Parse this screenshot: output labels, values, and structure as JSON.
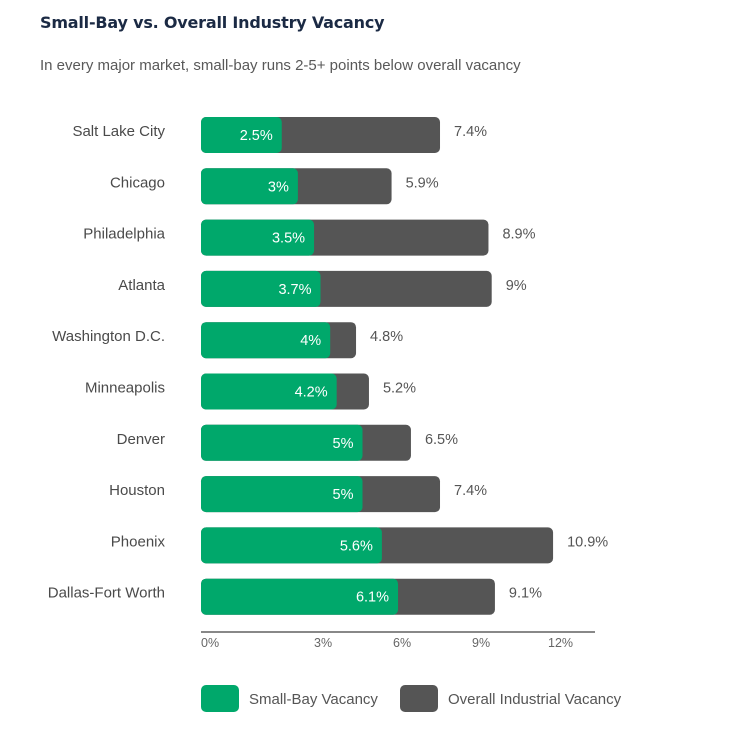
{
  "title": "Small-Bay vs. Overall Industry Vacancy",
  "subtitle": "In every major market, small-bay runs 2-5+ points below overall vacancy",
  "colors": {
    "small_bay": "#00a86b",
    "overall": "#555555",
    "axis": "#888888"
  },
  "chart_data": {
    "type": "bar",
    "orientation": "horizontal",
    "title": "Small-Bay vs. Overall Industry Vacancy",
    "subtitle": "In every major market, small-bay runs 2-5+ points below overall vacancy",
    "categories": [
      "Salt Lake City",
      "Chicago",
      "Philadelphia",
      "Atlanta",
      "Washington D.C.",
      "Minneapolis",
      "Denver",
      "Houston",
      "Phoenix",
      "Dallas-Fort Worth"
    ],
    "series": [
      {
        "name": "Small-Bay Vacancy",
        "values": [
          2.5,
          3,
          3.5,
          3.7,
          4,
          4.2,
          5,
          5,
          5.6,
          6.1
        ],
        "labels": [
          "2.5%",
          "3%",
          "3.5%",
          "3.7%",
          "4%",
          "4.2%",
          "5%",
          "5%",
          "5.6%",
          "6.1%"
        ]
      },
      {
        "name": "Overall Industrial Vacancy",
        "values": [
          7.4,
          5.9,
          8.9,
          9,
          4.8,
          5.2,
          6.5,
          7.4,
          10.9,
          9.1
        ],
        "labels": [
          "7.4%",
          "5.9%",
          "8.9%",
          "9%",
          "4.8%",
          "5.2%",
          "6.5%",
          "7.4%",
          "10.9%",
          "9.1%"
        ]
      }
    ],
    "xticks": [
      "0%",
      "3%",
      "6%",
      "9%",
      "12%"
    ],
    "xlim": [
      0,
      12
    ],
    "xlabel": "",
    "ylabel": "",
    "grid": false,
    "legend": "bottom"
  }
}
